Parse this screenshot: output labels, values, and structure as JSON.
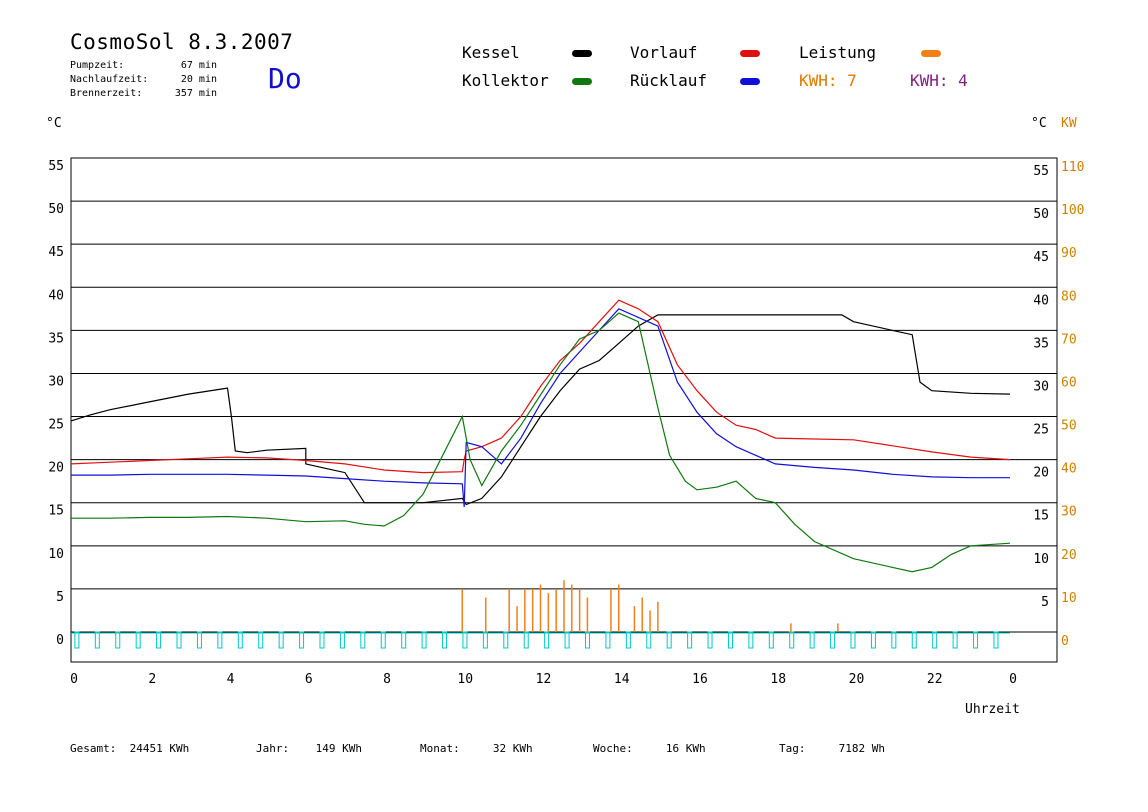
{
  "header": {
    "title": "CosmoSol 8.3.2007",
    "day": "Do",
    "info": [
      {
        "label": "Pumpzeit:",
        "value": "67 min"
      },
      {
        "label": "Nachlaufzeit:",
        "value": "20 min"
      },
      {
        "label": "Brennerzeit:",
        "value": "357 min"
      }
    ]
  },
  "legend": {
    "kessel": {
      "label": "Kessel",
      "color": "#000000"
    },
    "vorlauf": {
      "label": "Vorlauf",
      "color": "#e01010"
    },
    "leistung": {
      "label": "Leistung",
      "color": "#f08018"
    },
    "kollektor": {
      "label": "Kollektor",
      "color": "#107810"
    },
    "ruecklauf": {
      "label": "Rücklauf",
      "color": "#1010d8"
    },
    "kwh1": {
      "label": "KWH: 7",
      "color": "#e07800"
    },
    "kwh2": {
      "label": "KWH: 4",
      "color": "#802080"
    }
  },
  "axes": {
    "left_unit": "°C",
    "right_unit": "°C",
    "right_unit2": "KW",
    "x_label": "Uhrzeit"
  },
  "footer": [
    {
      "label": "Gesamt:",
      "value": "24451 KWh"
    },
    {
      "label": "Jahr:",
      "value": "149 KWh"
    },
    {
      "label": "Monat:",
      "value": "32 KWh"
    },
    {
      "label": "Woche:",
      "value": "16 KWh"
    },
    {
      "label": "Tag:",
      "value": "7182 Wh"
    }
  ],
  "chart_data": {
    "type": "line",
    "xlabel": "Uhrzeit",
    "ylabel": "°C",
    "y2label": "KW",
    "xlim": [
      0,
      24
    ],
    "ylim": [
      0,
      55
    ],
    "y2lim": [
      0,
      110
    ],
    "x_ticks": [
      "0",
      "2",
      "4",
      "6",
      "8",
      "10",
      "12",
      "14",
      "16",
      "18",
      "20",
      "22",
      "0"
    ],
    "x_tick_values": [
      0,
      2,
      4,
      6,
      8,
      10,
      12,
      14,
      16,
      18,
      20,
      22,
      24
    ],
    "y_ticks": [
      0,
      5,
      10,
      15,
      20,
      25,
      30,
      35,
      40,
      45,
      50,
      55
    ],
    "y2_ticks": [
      0,
      10,
      20,
      30,
      40,
      50,
      60,
      70,
      80,
      90,
      100,
      110
    ],
    "grid": true,
    "series": [
      {
        "name": "Kessel",
        "color": "#000000",
        "x": [
          0,
          0.5,
          1,
          2,
          3,
          4,
          4.1,
          4.2,
          4.5,
          5,
          6,
          6,
          6.5,
          7,
          7.5,
          8,
          9,
          10,
          10.1,
          10.5,
          11,
          11.5,
          12,
          12.5,
          13,
          13.5,
          14,
          14.5,
          15,
          16,
          17,
          18,
          19,
          19.7,
          20,
          21,
          21.5,
          21.7,
          22,
          23,
          24
        ],
        "y": [
          24.5,
          25.2,
          25.8,
          26.7,
          27.6,
          28.3,
          25,
          21,
          20.8,
          21.1,
          21.3,
          19.5,
          19,
          18.5,
          15,
          15,
          15,
          15.5,
          14.8,
          15.5,
          18,
          21.5,
          25,
          28,
          30.5,
          31.5,
          33.5,
          35.5,
          36.8,
          36.8,
          36.8,
          36.8,
          36.8,
          36.8,
          36,
          35,
          34.5,
          29,
          28,
          27.7,
          27.6
        ]
      },
      {
        "name": "Vorlauf",
        "color": "#e01010",
        "x": [
          0,
          1,
          2,
          3,
          4,
          5,
          6,
          7,
          8,
          9,
          10,
          10.05,
          10.1,
          10.5,
          11,
          11.5,
          12,
          12.5,
          13,
          13.5,
          14,
          14.5,
          15,
          15.5,
          16,
          16.5,
          17,
          17.5,
          18,
          19,
          20,
          21,
          22,
          23,
          24
        ],
        "y": [
          19.5,
          19.7,
          19.9,
          20.1,
          20.3,
          20.2,
          19.9,
          19.5,
          18.8,
          18.5,
          18.6,
          20,
          21,
          21.5,
          22.5,
          25,
          28.5,
          31.5,
          33.5,
          36,
          38.5,
          37.5,
          36,
          31,
          28,
          25.5,
          24,
          23.5,
          22.5,
          22.4,
          22.3,
          21.6,
          20.9,
          20.3,
          20
        ]
      },
      {
        "name": "Rücklauf",
        "color": "#1010d8",
        "x": [
          0,
          1,
          2,
          3,
          4,
          5,
          6,
          7,
          8,
          9,
          10,
          10.05,
          10.1,
          10.5,
          11,
          11.5,
          12,
          12.5,
          13,
          13.5,
          14,
          14.5,
          15,
          15.5,
          16,
          16.5,
          17,
          17.5,
          18,
          19,
          20,
          21,
          22,
          23,
          24
        ],
        "y": [
          18.2,
          18.2,
          18.3,
          18.3,
          18.3,
          18.2,
          18.1,
          17.8,
          17.5,
          17.3,
          17.2,
          14.5,
          22,
          21.5,
          19.5,
          22.5,
          26.5,
          30,
          32.5,
          35,
          37.5,
          36.5,
          35.5,
          29,
          25.5,
          23,
          21.5,
          20.5,
          19.5,
          19.1,
          18.8,
          18.3,
          18.0,
          17.9,
          17.9
        ]
      },
      {
        "name": "Kollektor",
        "color": "#107810",
        "x": [
          0,
          1,
          2,
          3,
          4,
          5,
          6,
          7,
          7.5,
          8,
          8.5,
          9,
          9.5,
          10,
          10.2,
          10.5,
          11,
          11.5,
          12,
          12.5,
          13,
          13.5,
          14,
          14.5,
          15,
          15.3,
          15.7,
          16,
          16.5,
          17,
          17.5,
          18,
          18.5,
          19,
          20,
          21,
          21.5,
          22,
          22.5,
          23,
          24
        ],
        "y": [
          13.2,
          13.2,
          13.3,
          13.3,
          13.4,
          13.2,
          12.8,
          12.9,
          12.5,
          12.3,
          13.5,
          16,
          20.5,
          25,
          20,
          17,
          21,
          24,
          27.5,
          31,
          34,
          35,
          37,
          36,
          26,
          20.5,
          17.5,
          16.5,
          16.8,
          17.5,
          15.5,
          15,
          12.5,
          10.5,
          8.5,
          7.5,
          7,
          7.5,
          9,
          10,
          10.3
        ]
      }
    ],
    "pump_cycles": {
      "name": "Pumpe",
      "color": "#00c8c8"
    },
    "power_bars": {
      "name": "Leistung",
      "color": "#f08018",
      "x": [
        10,
        10.6,
        11.2,
        11.4,
        11.6,
        11.8,
        12,
        12.2,
        12.4,
        12.6,
        12.8,
        13,
        13.2,
        13.8,
        14,
        14.4,
        14.6,
        14.8,
        15,
        18.4,
        19.6
      ],
      "y": [
        10,
        8,
        10,
        6,
        10,
        10,
        11,
        9,
        10,
        12,
        11,
        10,
        8,
        10,
        11,
        6,
        8,
        5,
        7,
        2,
        2
      ]
    }
  }
}
